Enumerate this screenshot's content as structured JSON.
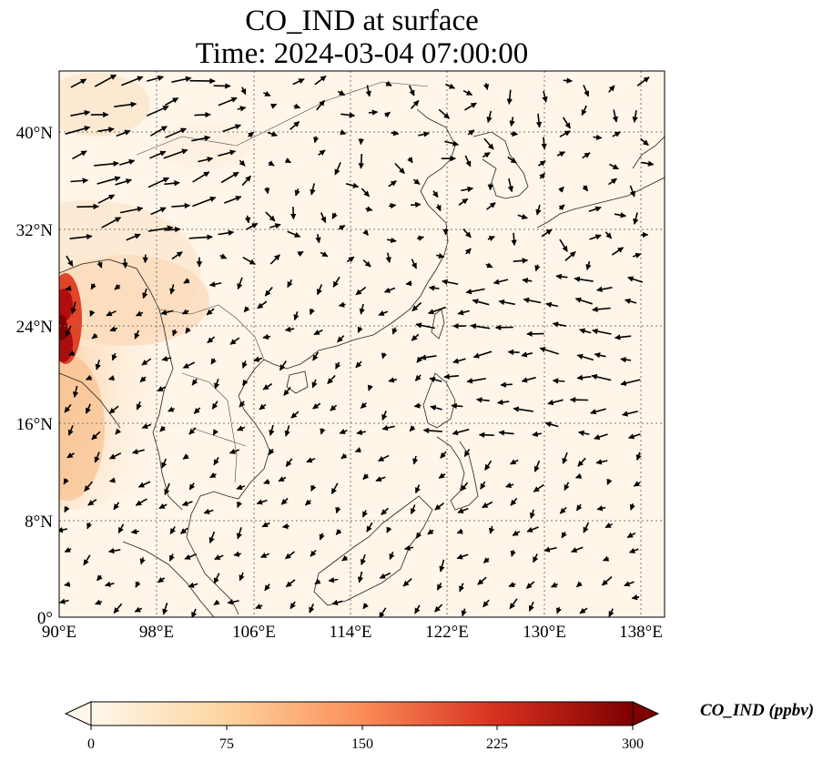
{
  "map": {
    "title_line1": "CO_IND at surface",
    "title_line2": "Time: 2024-03-04 07:00:00",
    "lon_ticks": [
      "90°E",
      "98°E",
      "106°E",
      "114°E",
      "122°E",
      "130°E",
      "138°E"
    ],
    "lat_ticks": [
      "40°N",
      "32°N",
      "24°N",
      "16°N",
      "8°N",
      "0°"
    ],
    "lon_range": [
      90,
      140
    ],
    "lat_range": [
      0,
      45
    ],
    "grid": "dotted",
    "field_colormap": "OrRd-style (white → orange → dark red)",
    "field_colors": {
      "low": "#fff5e6",
      "mid": "#f9b77a",
      "high": "#e04a2a",
      "max": "#7f0000"
    },
    "wind_vectors": "black arrows"
  },
  "colorbar": {
    "label": "CO_IND (ppbv)",
    "ticks": [
      "0",
      "75",
      "150",
      "225",
      "300"
    ],
    "min": 0,
    "max": 300,
    "extend": "both"
  }
}
